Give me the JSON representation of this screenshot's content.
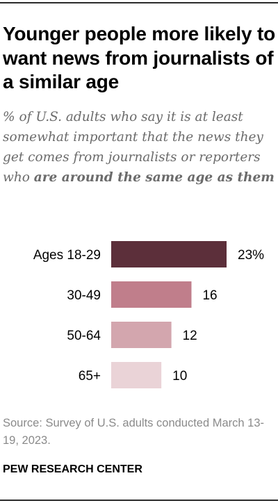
{
  "title": "Younger people more likely to want news from journalists of a similar age",
  "subtitle": {
    "plain": "% of U.S. adults who say it is at least somewhat important that the news they get comes from journalists or reporters who ",
    "emphasis": "are around the same age as them"
  },
  "chart_data": {
    "type": "bar",
    "orientation": "horizontal",
    "categories": [
      "Ages 18-29",
      "30-49",
      "50-64",
      "65+"
    ],
    "values": [
      23,
      16,
      12,
      10
    ],
    "value_labels": [
      "23%",
      "16",
      "12",
      "10"
    ],
    "colors": [
      "#5c2f3a",
      "#c07e8b",
      "#d3a6ae",
      "#ead3d7"
    ],
    "xlim": [
      0,
      23
    ],
    "grid": false,
    "legend": "none"
  },
  "source": "Source: Survey of U.S. adults conducted March 13-19, 2023.",
  "brand": "PEW RESEARCH CENTER"
}
